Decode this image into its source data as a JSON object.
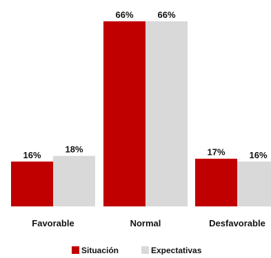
{
  "chart_data": {
    "type": "bar",
    "title": "",
    "xlabel": "",
    "ylabel": "",
    "ylim": [
      0,
      70
    ],
    "grid": false,
    "legend_position": "bottom",
    "categories": [
      "Favorable",
      "Normal",
      "Desfavorable"
    ],
    "series": [
      {
        "name": "Situación",
        "color": "#C00000",
        "values": [
          16,
          66,
          17
        ],
        "labels": [
          "16%",
          "66%",
          "17%"
        ]
      },
      {
        "name": "Expectativas",
        "color": "#D9D9D9",
        "values": [
          18,
          66,
          16
        ],
        "labels": [
          "18%",
          "66%",
          "16%"
        ]
      }
    ]
  }
}
